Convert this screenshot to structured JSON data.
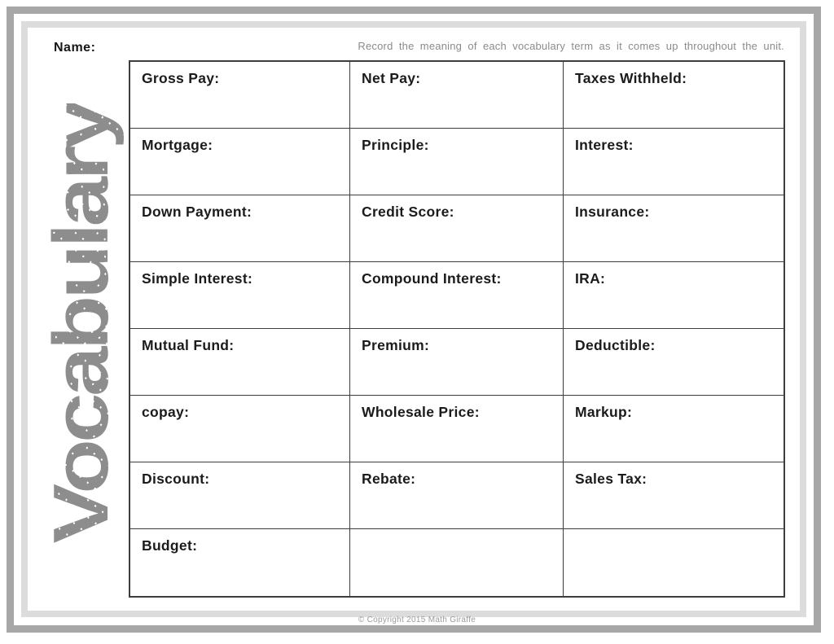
{
  "page": {
    "name_label": "Name:",
    "instruction": "Record the meaning of each vocabulary term as it comes up throughout the unit.",
    "vertical_title": "Vocabulary",
    "copyright": "© Copyright 2015 Math Giraffe"
  },
  "table": {
    "columns": 3,
    "rows": [
      [
        "Gross Pay:",
        "Net Pay:",
        "Taxes Withheld:"
      ],
      [
        "Mortgage:",
        "Principle:",
        "Interest:"
      ],
      [
        "Down Payment:",
        "Credit Score:",
        "Insurance:"
      ],
      [
        "Simple Interest:",
        "Compound Interest:",
        "IRA:"
      ],
      [
        "Mutual Fund:",
        "Premium:",
        "Deductible:"
      ],
      [
        "copay:",
        "Wholesale Price:",
        "Markup:"
      ],
      [
        "Discount:",
        "Rebate:",
        "Sales Tax:"
      ],
      [
        "Budget:",
        "",
        ""
      ]
    ]
  },
  "colors": {
    "frame_outer": "#a7a7a7",
    "frame_inner": "#dcdcdc",
    "table_border": "#3d3d3d",
    "term_text": "#1b1b1b",
    "muted_text": "#8b8b8b",
    "vertical_title_text": "#8d8d8d"
  }
}
